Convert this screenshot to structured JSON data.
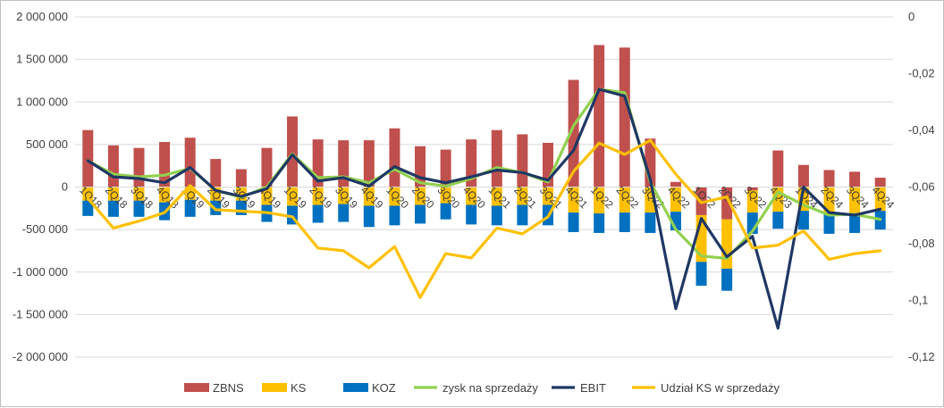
{
  "chart_data": {
    "type": "bar",
    "categories": [
      "1Q18",
      "2Q18",
      "3Q18",
      "4Q18",
      "1Q19",
      "2Q19",
      "3Q19",
      "4Q19",
      "1Q19",
      "2Q19",
      "3Q19",
      "4Q19",
      "1Q20",
      "2Q20",
      "3Q20",
      "4Q20",
      "1Q21",
      "2Q21",
      "3Q21",
      "4Q21",
      "1Q22",
      "2Q22",
      "3Q22",
      "4Q22",
      "1Q22",
      "2Q22",
      "3Q22",
      "4Q23",
      "1Q24",
      "2Q24",
      "3Q24",
      "4Q24"
    ],
    "category_labels": [
      "1Q18",
      "2Q18",
      "3Q18",
      "4Q18",
      "1Q19",
      "2Q19",
      "3Q19",
      "4Q19",
      "1Q19",
      "2Q19",
      "3Q19",
      "4Q19",
      "1Q20",
      "2Q20",
      "3Q20",
      "4Q20",
      "1Q21",
      "2Q21",
      "3Q21",
      "4Q21",
      "1Q22",
      "2Q22",
      "3Q22",
      "4Q22",
      "1Q22",
      "2Q22",
      "3Q22",
      "4Q23",
      "1Q24",
      "2Q24",
      "3Q24",
      "4Q24"
    ],
    "ylim": [
      -2000000,
      2000000
    ],
    "y_ticks": [
      "2 000 000",
      "1 500 000",
      "1 000 000",
      "500 000",
      "0",
      "-500 000",
      "-1 000 000",
      "-1 500 000",
      "-2 000 000"
    ],
    "y2lim": [
      -0.12,
      0
    ],
    "y2_ticks": [
      "0",
      "-0,02",
      "-0,04",
      "-0,06",
      "-0,08",
      "-0,1",
      "-0,12"
    ],
    "grid": true,
    "legend_position": "bottom",
    "series": [
      {
        "name": "ZBNS",
        "kind": "bar",
        "color": "#c0504d",
        "values": [
          670000,
          490000,
          460000,
          530000,
          580000,
          330000,
          210000,
          460000,
          830000,
          560000,
          550000,
          550000,
          690000,
          480000,
          440000,
          560000,
          670000,
          620000,
          520000,
          1260000,
          1670000,
          1640000,
          570000,
          60000,
          -330000,
          -380000,
          -40000,
          430000,
          260000,
          200000,
          180000,
          110000
        ]
      },
      {
        "name": "KS",
        "kind": "bar",
        "color": "#ffc000",
        "values": [
          -160000,
          -160000,
          -160000,
          -180000,
          -150000,
          -160000,
          -160000,
          -210000,
          -220000,
          -210000,
          -200000,
          -220000,
          -220000,
          -210000,
          -190000,
          -210000,
          -220000,
          -210000,
          -210000,
          -300000,
          -310000,
          -300000,
          -300000,
          -290000,
          -550000,
          -580000,
          -260000,
          -290000,
          -280000,
          -320000,
          -320000,
          -280000
        ]
      },
      {
        "name": "KOZ",
        "kind": "bar",
        "color": "#0070c0",
        "values": [
          -180000,
          -190000,
          -190000,
          -210000,
          -200000,
          -170000,
          -170000,
          -200000,
          -220000,
          -210000,
          -210000,
          -250000,
          -230000,
          -220000,
          -190000,
          -230000,
          -230000,
          -240000,
          -240000,
          -230000,
          -230000,
          -230000,
          -240000,
          -220000,
          -280000,
          -260000,
          -250000,
          -200000,
          -220000,
          -230000,
          -220000,
          -220000
        ]
      },
      {
        "name": "zysk na sprzedaży",
        "kind": "line",
        "color": "#92d050",
        "values": [
          310000,
          150000,
          120000,
          140000,
          220000,
          -40000,
          -120000,
          0,
          390000,
          110000,
          120000,
          50000,
          210000,
          50000,
          10000,
          100000,
          230000,
          170000,
          60000,
          720000,
          1150000,
          1110000,
          60000,
          -500000,
          -810000,
          -840000,
          -520000,
          -60000,
          -210000,
          -330000,
          -320000,
          -380000
        ]
      },
      {
        "name": "EBIT",
        "kind": "line",
        "color": "#1f3864",
        "values": [
          310000,
          120000,
          100000,
          50000,
          230000,
          -40000,
          -110000,
          -20000,
          380000,
          70000,
          110000,
          10000,
          240000,
          110000,
          50000,
          120000,
          200000,
          170000,
          80000,
          430000,
          1150000,
          1070000,
          90000,
          -1430000,
          -370000,
          -820000,
          -580000,
          -1660000,
          0,
          -300000,
          -330000,
          -260000
        ]
      },
      {
        "name": "Udział KS w sprzedaży",
        "kind": "line",
        "axis": "right",
        "color": "#ffc000",
        "values": [
          -0.064,
          -0.0745,
          -0.072,
          -0.069,
          -0.0595,
          -0.068,
          -0.0685,
          -0.069,
          -0.0705,
          -0.0815,
          -0.0825,
          -0.0885,
          -0.081,
          -0.099,
          -0.0835,
          -0.085,
          -0.0745,
          -0.0765,
          -0.0705,
          -0.0545,
          -0.0445,
          -0.0485,
          -0.0435,
          -0.0555,
          -0.0655,
          -0.0635,
          -0.0815,
          -0.0805,
          -0.0755,
          -0.0855,
          -0.0835,
          -0.0825
        ]
      }
    ],
    "legend": [
      {
        "label": "ZBNS",
        "swatch": "rect",
        "color": "#c0504d"
      },
      {
        "label": "KS",
        "swatch": "rect",
        "color": "#ffc000"
      },
      {
        "label": "KOZ",
        "swatch": "rect",
        "color": "#0070c0"
      },
      {
        "label": "zysk na sprzedaży",
        "swatch": "line",
        "color": "#92d050"
      },
      {
        "label": "EBIT",
        "swatch": "line",
        "color": "#1f3864"
      },
      {
        "label": "Udział KS w sprzedaży",
        "swatch": "line",
        "color": "#ffc000"
      }
    ]
  }
}
